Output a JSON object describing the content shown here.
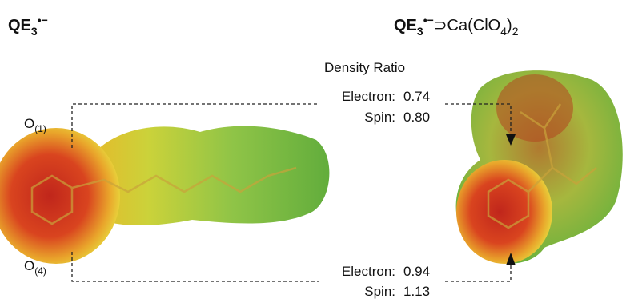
{
  "left": {
    "title": {
      "base": "QE",
      "sub": "3",
      "sup": "•−"
    },
    "o1": {
      "base": "O",
      "sub": "(1)"
    },
    "o4": {
      "base": "O",
      "sub": "(4)"
    }
  },
  "right": {
    "title": {
      "base": "QE",
      "sub": "3",
      "sup": "•−",
      "complex": "⊃Ca(ClO",
      "sub2": "4",
      "close": ")",
      "sub3": "2"
    }
  },
  "density_ratio": {
    "heading": "Density Ratio",
    "top": {
      "electron_label": "Electron:",
      "electron": "0.74",
      "spin_label": "Spin:",
      "spin": "0.80"
    },
    "bottom": {
      "electron_label": "Electron:",
      "electron": "0.94",
      "spin_label": "Spin:",
      "spin": "1.13"
    }
  }
}
